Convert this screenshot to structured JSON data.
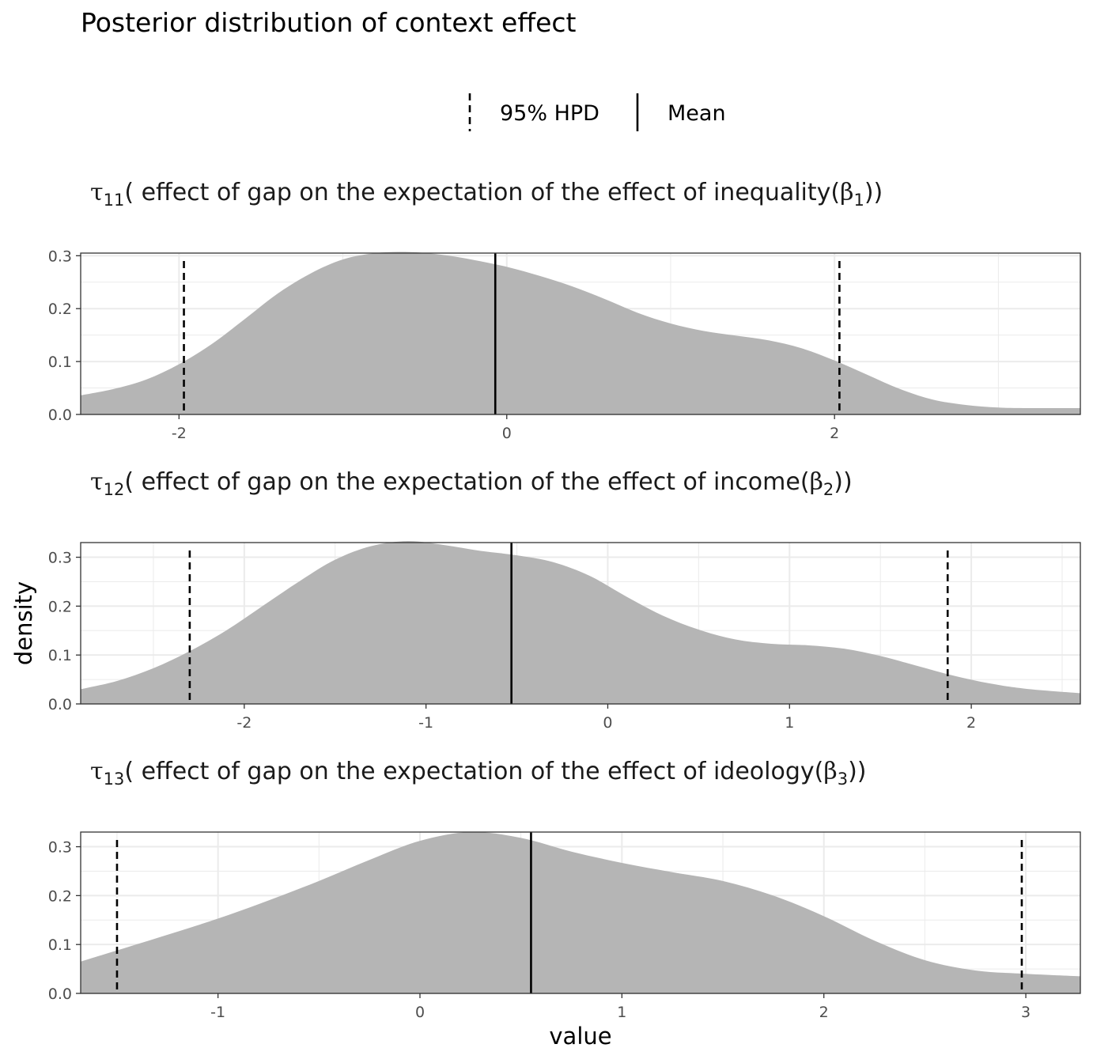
{
  "title": "Posterior distribution of context effect",
  "xlabel": "value",
  "ylabel": "density",
  "legend": {
    "placement": "top",
    "items": [
      {
        "label": "95% HPD",
        "linetype": "dashed"
      },
      {
        "label": "Mean",
        "linetype": "solid"
      }
    ]
  },
  "colors": {
    "density_fill": "#b2b2b2",
    "line": "#000000",
    "grid": "#ebebeb",
    "panel_border": "#333333",
    "tick_text": "#4d4d4d"
  },
  "chart_data": [
    {
      "type": "area",
      "title": {
        "symbol": "τ",
        "subscript": "11",
        "text": "( effect of gap on the expectation of the effect of inequality(",
        "beta": "β",
        "beta_sub": "1",
        "close": "))"
      },
      "xlim": [
        -2.6,
        3.5
      ],
      "ylim": [
        0,
        0.305
      ],
      "xticks": [
        -2,
        0,
        2
      ],
      "xtick_labels": [
        "-2",
        "0",
        "2"
      ],
      "yticks": [
        0.0,
        0.1,
        0.2,
        0.3
      ],
      "ytick_labels": [
        "0.0",
        "0.1",
        "0.2",
        "0.3"
      ],
      "density": {
        "x": [
          -2.6,
          -2.4,
          -2.2,
          -2.0,
          -1.8,
          -1.6,
          -1.4,
          -1.2,
          -1.0,
          -0.8,
          -0.6,
          -0.4,
          -0.2,
          0.0,
          0.2,
          0.4,
          0.6,
          0.8,
          1.0,
          1.2,
          1.4,
          1.6,
          1.8,
          2.0,
          2.2,
          2.4,
          2.6,
          2.8,
          3.0,
          3.2,
          3.5
        ],
        "y": [
          0.036,
          0.048,
          0.066,
          0.095,
          0.133,
          0.18,
          0.228,
          0.266,
          0.293,
          0.305,
          0.307,
          0.302,
          0.292,
          0.279,
          0.262,
          0.242,
          0.218,
          0.192,
          0.172,
          0.158,
          0.149,
          0.14,
          0.125,
          0.102,
          0.075,
          0.048,
          0.028,
          0.018,
          0.013,
          0.012,
          0.012
        ]
      },
      "mean": -0.07,
      "hpd": [
        -1.97,
        2.03
      ]
    },
    {
      "type": "area",
      "title": {
        "symbol": "τ",
        "subscript": "12",
        "text": "( effect of gap on the expectation of the effect of income(",
        "beta": "β",
        "beta_sub": "2",
        "close": "))"
      },
      "xlim": [
        -2.9,
        2.6
      ],
      "ylim": [
        0,
        0.33
      ],
      "xticks": [
        -2,
        -1,
        0,
        1,
        2
      ],
      "xtick_labels": [
        "-2",
        "-1",
        "0",
        "1",
        "2"
      ],
      "yticks": [
        0.0,
        0.1,
        0.2,
        0.3
      ],
      "ytick_labels": [
        "0.0",
        "0.1",
        "0.2",
        "0.3"
      ],
      "density": {
        "x": [
          -2.9,
          -2.7,
          -2.5,
          -2.3,
          -2.1,
          -1.9,
          -1.7,
          -1.5,
          -1.3,
          -1.1,
          -0.9,
          -0.7,
          -0.5,
          -0.3,
          -0.1,
          0.1,
          0.3,
          0.5,
          0.7,
          0.9,
          1.1,
          1.3,
          1.5,
          1.7,
          1.9,
          2.1,
          2.3,
          2.6
        ],
        "y": [
          0.03,
          0.047,
          0.073,
          0.108,
          0.15,
          0.2,
          0.25,
          0.295,
          0.323,
          0.333,
          0.325,
          0.313,
          0.304,
          0.29,
          0.262,
          0.22,
          0.181,
          0.152,
          0.132,
          0.123,
          0.12,
          0.113,
          0.098,
          0.078,
          0.058,
          0.042,
          0.031,
          0.022
        ]
      },
      "mean": -0.53,
      "hpd": [
        -2.3,
        1.87
      ]
    },
    {
      "type": "area",
      "title": {
        "symbol": "τ",
        "subscript": "13",
        "text": "( effect of gap on the expectation of the effect of ideology(",
        "beta": "β",
        "beta_sub": "3",
        "close": "))"
      },
      "xlim": [
        -1.68,
        3.27
      ],
      "ylim": [
        0,
        0.33
      ],
      "xticks": [
        -1,
        0,
        1,
        2,
        3
      ],
      "xtick_labels": [
        "-1",
        "0",
        "1",
        "2",
        "3"
      ],
      "yticks": [
        0.0,
        0.1,
        0.2,
        0.3
      ],
      "ytick_labels": [
        "0.0",
        "0.1",
        "0.2",
        "0.3"
      ],
      "density": {
        "x": [
          -1.68,
          -1.5,
          -1.25,
          -1.0,
          -0.75,
          -0.5,
          -0.25,
          0.0,
          0.25,
          0.5,
          0.75,
          1.0,
          1.25,
          1.5,
          1.75,
          2.0,
          2.25,
          2.5,
          2.75,
          3.0,
          3.27
        ],
        "y": [
          0.065,
          0.088,
          0.12,
          0.153,
          0.19,
          0.23,
          0.273,
          0.312,
          0.33,
          0.318,
          0.29,
          0.267,
          0.248,
          0.23,
          0.2,
          0.158,
          0.108,
          0.068,
          0.047,
          0.04,
          0.035
        ]
      },
      "mean": 0.55,
      "hpd": [
        -1.5,
        2.98
      ]
    }
  ]
}
